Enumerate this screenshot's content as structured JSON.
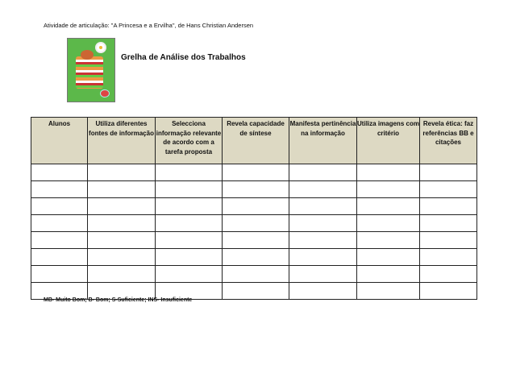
{
  "document": {
    "subtitle": "Atividade de articulação: \"A Princesa e a Ervilha\", de Hans Christian Andersen",
    "title": "Grelha de Análise dos Trabalhos",
    "illustration": "princess-and-pea-illustration",
    "table": {
      "header_color": "#ddd9c3",
      "columns": [
        "Alunos",
        "Utiliza diferentes fontes de informação",
        "Selecciona informação relevante de acordo com a tarefa proposta",
        "Revela capacidade de síntese",
        "Manifesta pertinência na informação",
        "Utiliza imagens com critério",
        "Revela ética: faz referências BB e citações"
      ],
      "rows": [
        [
          "",
          "",
          "",
          "",
          "",
          "",
          ""
        ],
        [
          "",
          "",
          "",
          "",
          "",
          "",
          ""
        ],
        [
          "",
          "",
          "",
          "",
          "",
          "",
          ""
        ],
        [
          "",
          "",
          "",
          "",
          "",
          "",
          ""
        ],
        [
          "",
          "",
          "",
          "",
          "",
          "",
          ""
        ],
        [
          "",
          "",
          "",
          "",
          "",
          "",
          ""
        ],
        [
          "",
          "",
          "",
          "",
          "",
          "",
          ""
        ],
        [
          "",
          "",
          "",
          "",
          "",
          "",
          ""
        ]
      ]
    },
    "legend": "MB- Muito Bom; B- Bom; S-Suficiente; INS- Insuficiente"
  }
}
